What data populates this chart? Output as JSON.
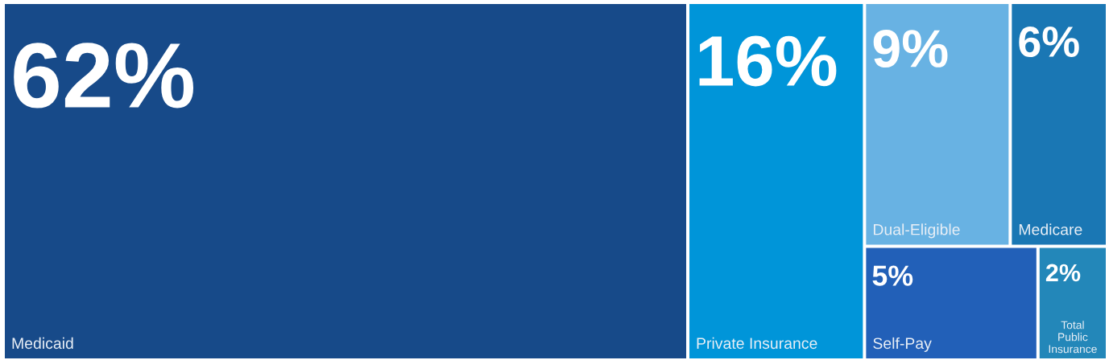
{
  "chart_data": {
    "type": "other",
    "categories": [
      "Medicaid",
      "Private Insurance",
      "Dual-Eligible",
      "Medicare",
      "Self-Pay",
      "Total Public Insurance"
    ],
    "values": [
      62,
      16,
      9,
      6,
      5,
      2
    ],
    "colors": [
      "#174a89",
      "#0095d9",
      "#68b2e3",
      "#1a77b4",
      "#2260b8",
      "#2387b9"
    ],
    "value_labels": [
      "62%",
      "16%",
      "9%",
      "6%",
      "5%",
      "2%"
    ]
  }
}
